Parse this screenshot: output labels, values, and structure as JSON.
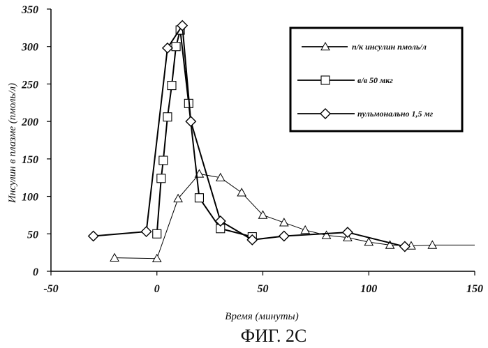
{
  "chart_data": {
    "type": "line",
    "xlabel": "Время (минуты)",
    "ylabel": "Инсулин в плазме (пмоль/л)",
    "caption": "ФИГ. 2C",
    "xlim": [
      -50,
      150
    ],
    "ylim": [
      0,
      350
    ],
    "xticks": [
      "-50",
      "0",
      "50",
      "100",
      "150"
    ],
    "yticks": [
      "0",
      "50",
      "100",
      "150",
      "200",
      "250",
      "300",
      "350"
    ],
    "legend_position": "top-right",
    "grid": false,
    "series": [
      {
        "name": "п/к инсулин пмоль/л",
        "marker": "triangle",
        "x": [
          -20,
          0,
          10,
          20,
          30,
          40,
          50,
          60,
          70,
          80,
          90,
          100,
          110,
          120,
          130
        ],
        "y": [
          18,
          17,
          97,
          130,
          125,
          105,
          75,
          65,
          55,
          48,
          45,
          39,
          35,
          34,
          35
        ],
        "tail_to": 150
      },
      {
        "name": "в/в 50 мкг",
        "marker": "square",
        "x": [
          0,
          2,
          3,
          5,
          7,
          9,
          11,
          15,
          20,
          30,
          45
        ],
        "y": [
          50,
          124,
          148,
          206,
          248,
          300,
          322,
          224,
          98,
          57,
          46
        ]
      },
      {
        "name": "пульмонально 1,5 мг",
        "marker": "diamond",
        "x": [
          -30,
          -5,
          5,
          12,
          16,
          30,
          45,
          60,
          90,
          117
        ],
        "y": [
          47,
          53,
          298,
          328,
          200,
          67,
          42,
          47,
          52,
          33
        ]
      }
    ]
  }
}
